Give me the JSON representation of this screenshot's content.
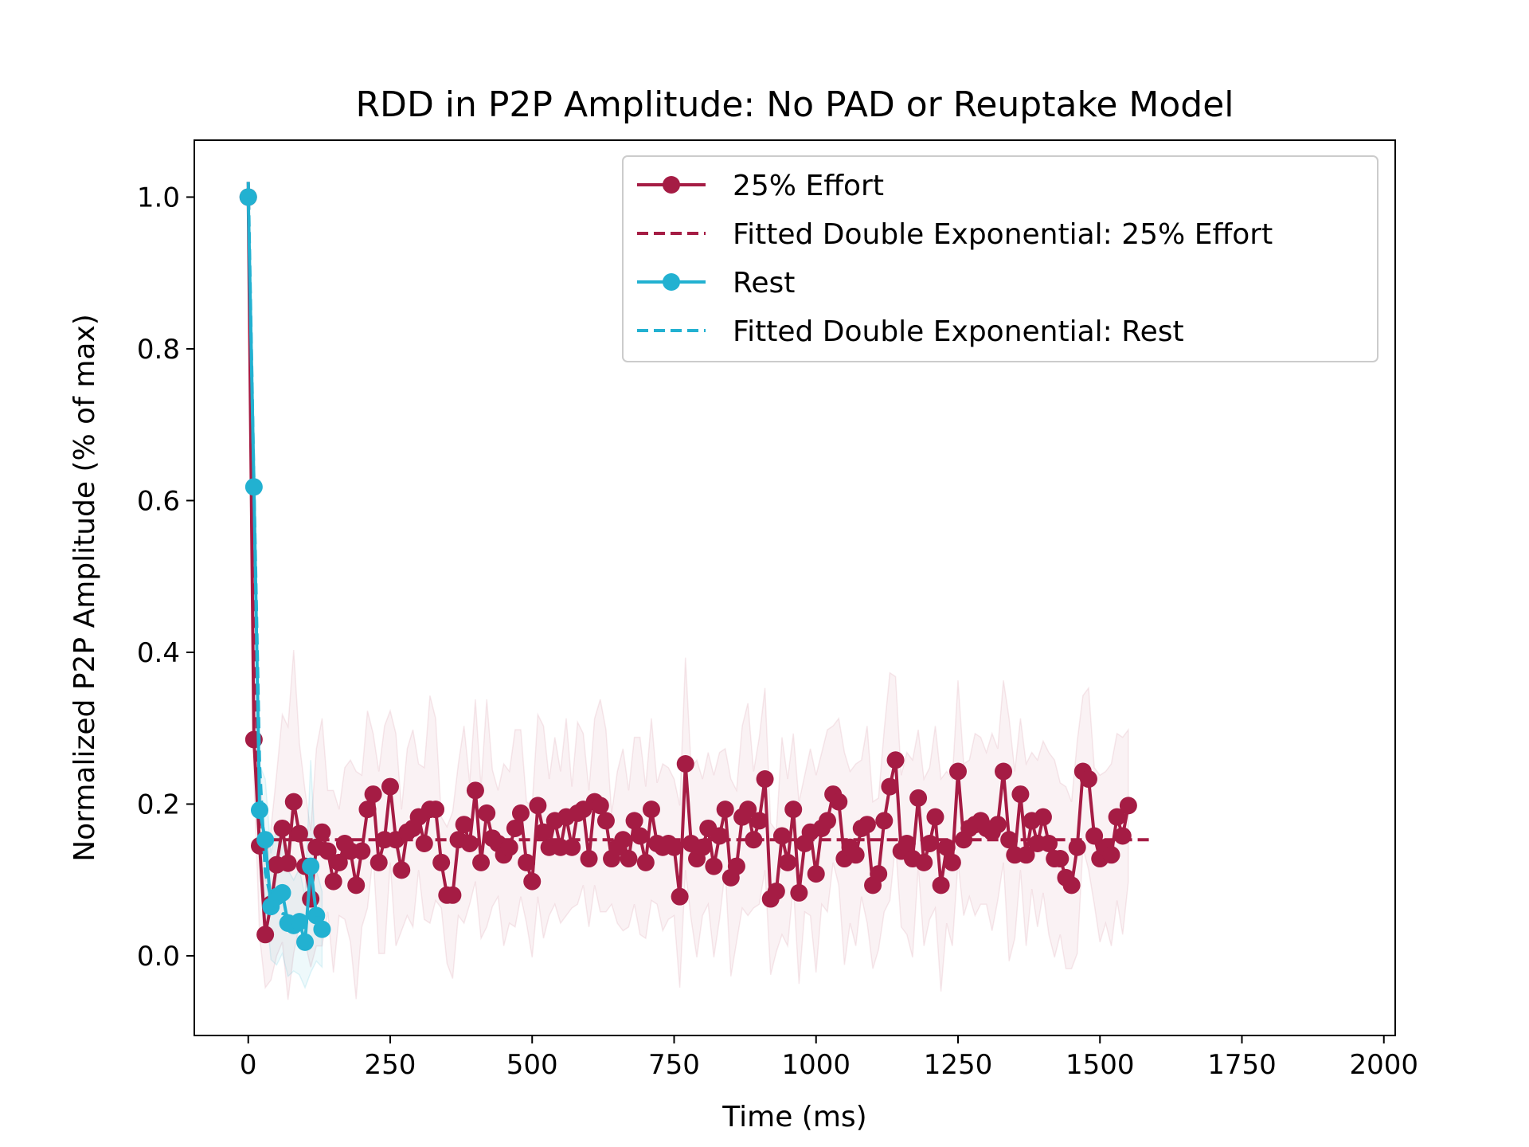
{
  "chart_data": {
    "type": "line",
    "title": "RDD in P2P Amplitude: No PAD or Reuptake Model",
    "xlabel": "Time (ms)",
    "ylabel": "Normalized P2P Amplitude (% of max)",
    "xlim": [
      -95,
      2020
    ],
    "ylim": [
      -0.105,
      1.075
    ],
    "xticks": [
      0,
      250,
      500,
      750,
      1000,
      1250,
      1500,
      1750,
      2000
    ],
    "xtick_labels": [
      "0",
      "250",
      "500",
      "750",
      "1000",
      "1250",
      "1500",
      "1750",
      "2000"
    ],
    "yticks": [
      0.0,
      0.2,
      0.4,
      0.6,
      0.8,
      1.0
    ],
    "ytick_labels": [
      "0.0",
      "0.2",
      "0.4",
      "0.6",
      "0.8",
      "1.0"
    ],
    "legend_position": "upper right",
    "grid": false,
    "x_step_ms": 10,
    "series": [
      {
        "name": "25% Effort",
        "style": "line-marker",
        "color": "#a51c44",
        "x_start": 0,
        "values": [
          1.0,
          0.285,
          0.145,
          0.028,
          0.068,
          0.12,
          0.168,
          0.122,
          0.203,
          0.161,
          0.118,
          0.075,
          0.143,
          0.163,
          0.138,
          0.098,
          0.123,
          0.148,
          0.138,
          0.093,
          0.138,
          0.193,
          0.213,
          0.123,
          0.153,
          0.223,
          0.153,
          0.113,
          0.163,
          0.168,
          0.183,
          0.148,
          0.193,
          0.193,
          0.123,
          0.08,
          0.08,
          0.153,
          0.173,
          0.148,
          0.218,
          0.123,
          0.188,
          0.155,
          0.148,
          0.133,
          0.143,
          0.168,
          0.188,
          0.123,
          0.098,
          0.198,
          0.163,
          0.143,
          0.178,
          0.143,
          0.183,
          0.143,
          0.188,
          0.193,
          0.128,
          0.203,
          0.198,
          0.178,
          0.128,
          0.143,
          0.153,
          0.128,
          0.178,
          0.158,
          0.123,
          0.193,
          0.148,
          0.143,
          0.148,
          0.143,
          0.078,
          0.253,
          0.148,
          0.128,
          0.143,
          0.168,
          0.118,
          0.158,
          0.193,
          0.103,
          0.118,
          0.183,
          0.193,
          0.153,
          0.178,
          0.233,
          0.075,
          0.085,
          0.158,
          0.123,
          0.193,
          0.083,
          0.148,
          0.163,
          0.108,
          0.168,
          0.178,
          0.213,
          0.203,
          0.128,
          0.143,
          0.133,
          0.168,
          0.173,
          0.093,
          0.108,
          0.178,
          0.223,
          0.258,
          0.138,
          0.148,
          0.128,
          0.208,
          0.123,
          0.148,
          0.183,
          0.093,
          0.143,
          0.123,
          0.243,
          0.153,
          0.168,
          0.173,
          0.178,
          0.168,
          0.163,
          0.173,
          0.243,
          0.153,
          0.133,
          0.213,
          0.133,
          0.178,
          0.148,
          0.183,
          0.148,
          0.128,
          0.128,
          0.103,
          0.093,
          0.143,
          0.243,
          0.233,
          0.158,
          0.128,
          0.143,
          0.133,
          0.183,
          0.158,
          0.198
        ]
      },
      {
        "name": "Fitted Double Exponential: 25% Effort",
        "style": "dashed",
        "color": "#a51c44",
        "x_start": 0,
        "values": [
          1.02,
          0.49,
          0.15,
          0.153,
          0.153,
          0.153,
          0.153,
          0.153,
          0.153,
          0.153,
          0.153,
          0.153,
          0.153,
          0.153,
          0.153,
          0.153,
          0.153,
          0.153,
          0.153,
          0.153,
          0.153,
          0.153,
          0.153,
          0.153,
          0.153,
          0.153,
          0.153,
          0.153,
          0.153,
          0.153,
          0.153,
          0.153,
          0.153,
          0.153,
          0.153,
          0.153,
          0.153,
          0.153,
          0.153,
          0.153,
          0.153,
          0.153,
          0.153,
          0.153,
          0.153,
          0.153,
          0.153,
          0.153,
          0.153,
          0.153,
          0.153,
          0.153,
          0.153,
          0.153,
          0.153,
          0.153,
          0.153,
          0.153,
          0.153,
          0.153,
          0.153,
          0.153,
          0.153,
          0.153,
          0.153,
          0.153,
          0.153,
          0.153,
          0.153,
          0.153,
          0.153,
          0.153,
          0.153,
          0.153,
          0.153,
          0.153,
          0.153,
          0.153,
          0.153,
          0.153,
          0.153,
          0.153,
          0.153,
          0.153,
          0.153,
          0.153,
          0.153,
          0.153,
          0.153,
          0.153,
          0.153,
          0.153,
          0.153,
          0.153,
          0.153,
          0.153,
          0.153,
          0.153,
          0.153,
          0.153,
          0.153,
          0.153,
          0.153,
          0.153,
          0.153,
          0.153,
          0.153,
          0.153,
          0.153,
          0.153,
          0.153,
          0.153,
          0.153,
          0.153,
          0.153,
          0.153,
          0.153,
          0.153,
          0.153,
          0.153,
          0.153,
          0.153,
          0.153,
          0.153,
          0.153,
          0.153,
          0.153,
          0.153,
          0.153,
          0.153,
          0.153,
          0.153,
          0.153,
          0.153,
          0.153,
          0.153,
          0.153,
          0.153,
          0.153,
          0.153,
          0.153,
          0.153,
          0.153,
          0.153,
          0.153,
          0.153,
          0.153,
          0.153,
          0.153,
          0.153,
          0.153,
          0.153,
          0.153,
          0.153,
          0.153,
          0.153,
          0.153,
          0.153,
          0.153,
          0.153
        ]
      },
      {
        "name": "Rest",
        "style": "line-marker",
        "color": "#22b1d1",
        "x_start": 0,
        "values": [
          1.0,
          0.618,
          0.192,
          0.153,
          0.065,
          0.078,
          0.083,
          0.043,
          0.04,
          0.045,
          0.018,
          0.118,
          0.053,
          0.035
        ]
      },
      {
        "name": "Fitted Double Exponential: Rest",
        "style": "dashed",
        "color": "#22b1d1",
        "x_start": 0,
        "values": [
          1.02,
          0.62,
          0.25,
          0.11,
          0.075,
          0.062,
          0.056,
          0.053,
          0.051,
          0.05,
          0.05,
          0.05,
          0.05,
          0.05
        ]
      }
    ],
    "bands": [
      {
        "series": "25% Effort",
        "color": "#a51c44",
        "opacity": 0.06,
        "half_width": [
          0.02,
          0.05,
          0.12,
          0.07,
          0.1,
          0.12,
          0.15,
          0.18,
          0.2,
          0.12,
          0.1,
          0.09,
          0.13,
          0.15,
          0.08,
          0.12,
          0.07,
          0.1,
          0.12,
          0.15,
          0.1,
          0.13,
          0.08,
          0.12,
          0.15,
          0.1,
          0.14,
          0.08,
          0.11,
          0.13,
          0.07,
          0.1,
          0.15,
          0.12,
          0.06,
          0.09,
          0.11,
          0.1,
          0.13,
          0.08,
          0.12,
          0.1,
          0.15,
          0.09,
          0.07,
          0.12,
          0.1,
          0.13,
          0.11,
          0.08,
          0.1,
          0.12,
          0.14,
          0.09,
          0.11,
          0.1,
          0.13,
          0.08,
          0.12,
          0.1,
          0.09,
          0.11,
          0.14,
          0.12,
          0.06,
          0.1,
          0.12,
          0.09,
          0.11,
          0.13,
          0.1,
          0.12,
          0.08,
          0.11,
          0.1,
          0.09,
          0.12,
          0.14,
          0.1,
          0.13,
          0.09,
          0.1,
          0.12,
          0.11,
          0.08,
          0.13,
          0.1,
          0.12,
          0.14,
          0.09,
          0.11,
          0.12,
          0.1,
          0.08,
          0.13,
          0.11,
          0.1,
          0.12,
          0.09,
          0.11,
          0.13,
          0.1,
          0.12,
          0.09,
          0.11,
          0.14,
          0.1,
          0.12,
          0.09,
          0.13,
          0.11,
          0.1,
          0.12,
          0.15,
          0.11,
          0.1,
          0.12,
          0.13,
          0.09,
          0.11,
          0.1,
          0.12,
          0.14,
          0.1,
          0.11,
          0.12,
          0.1,
          0.09,
          0.12,
          0.11,
          0.1,
          0.13,
          0.1,
          0.12,
          0.16,
          0.11,
          0.1,
          0.12,
          0.09,
          0.11,
          0.1,
          0.12,
          0.13,
          0.1,
          0.12,
          0.11,
          0.14,
          0.1,
          0.12,
          0.09,
          0.11,
          0.1,
          0.12,
          0.11,
          0.13,
          0.1
        ]
      },
      {
        "series": "Rest",
        "color": "#22b1d1",
        "opacity": 0.08,
        "half_width": [
          0.02,
          0.05,
          0.06,
          0.08,
          0.07,
          0.09,
          0.08,
          0.07,
          0.06,
          0.07,
          0.06,
          0.14,
          0.06,
          0.05
        ]
      }
    ]
  }
}
